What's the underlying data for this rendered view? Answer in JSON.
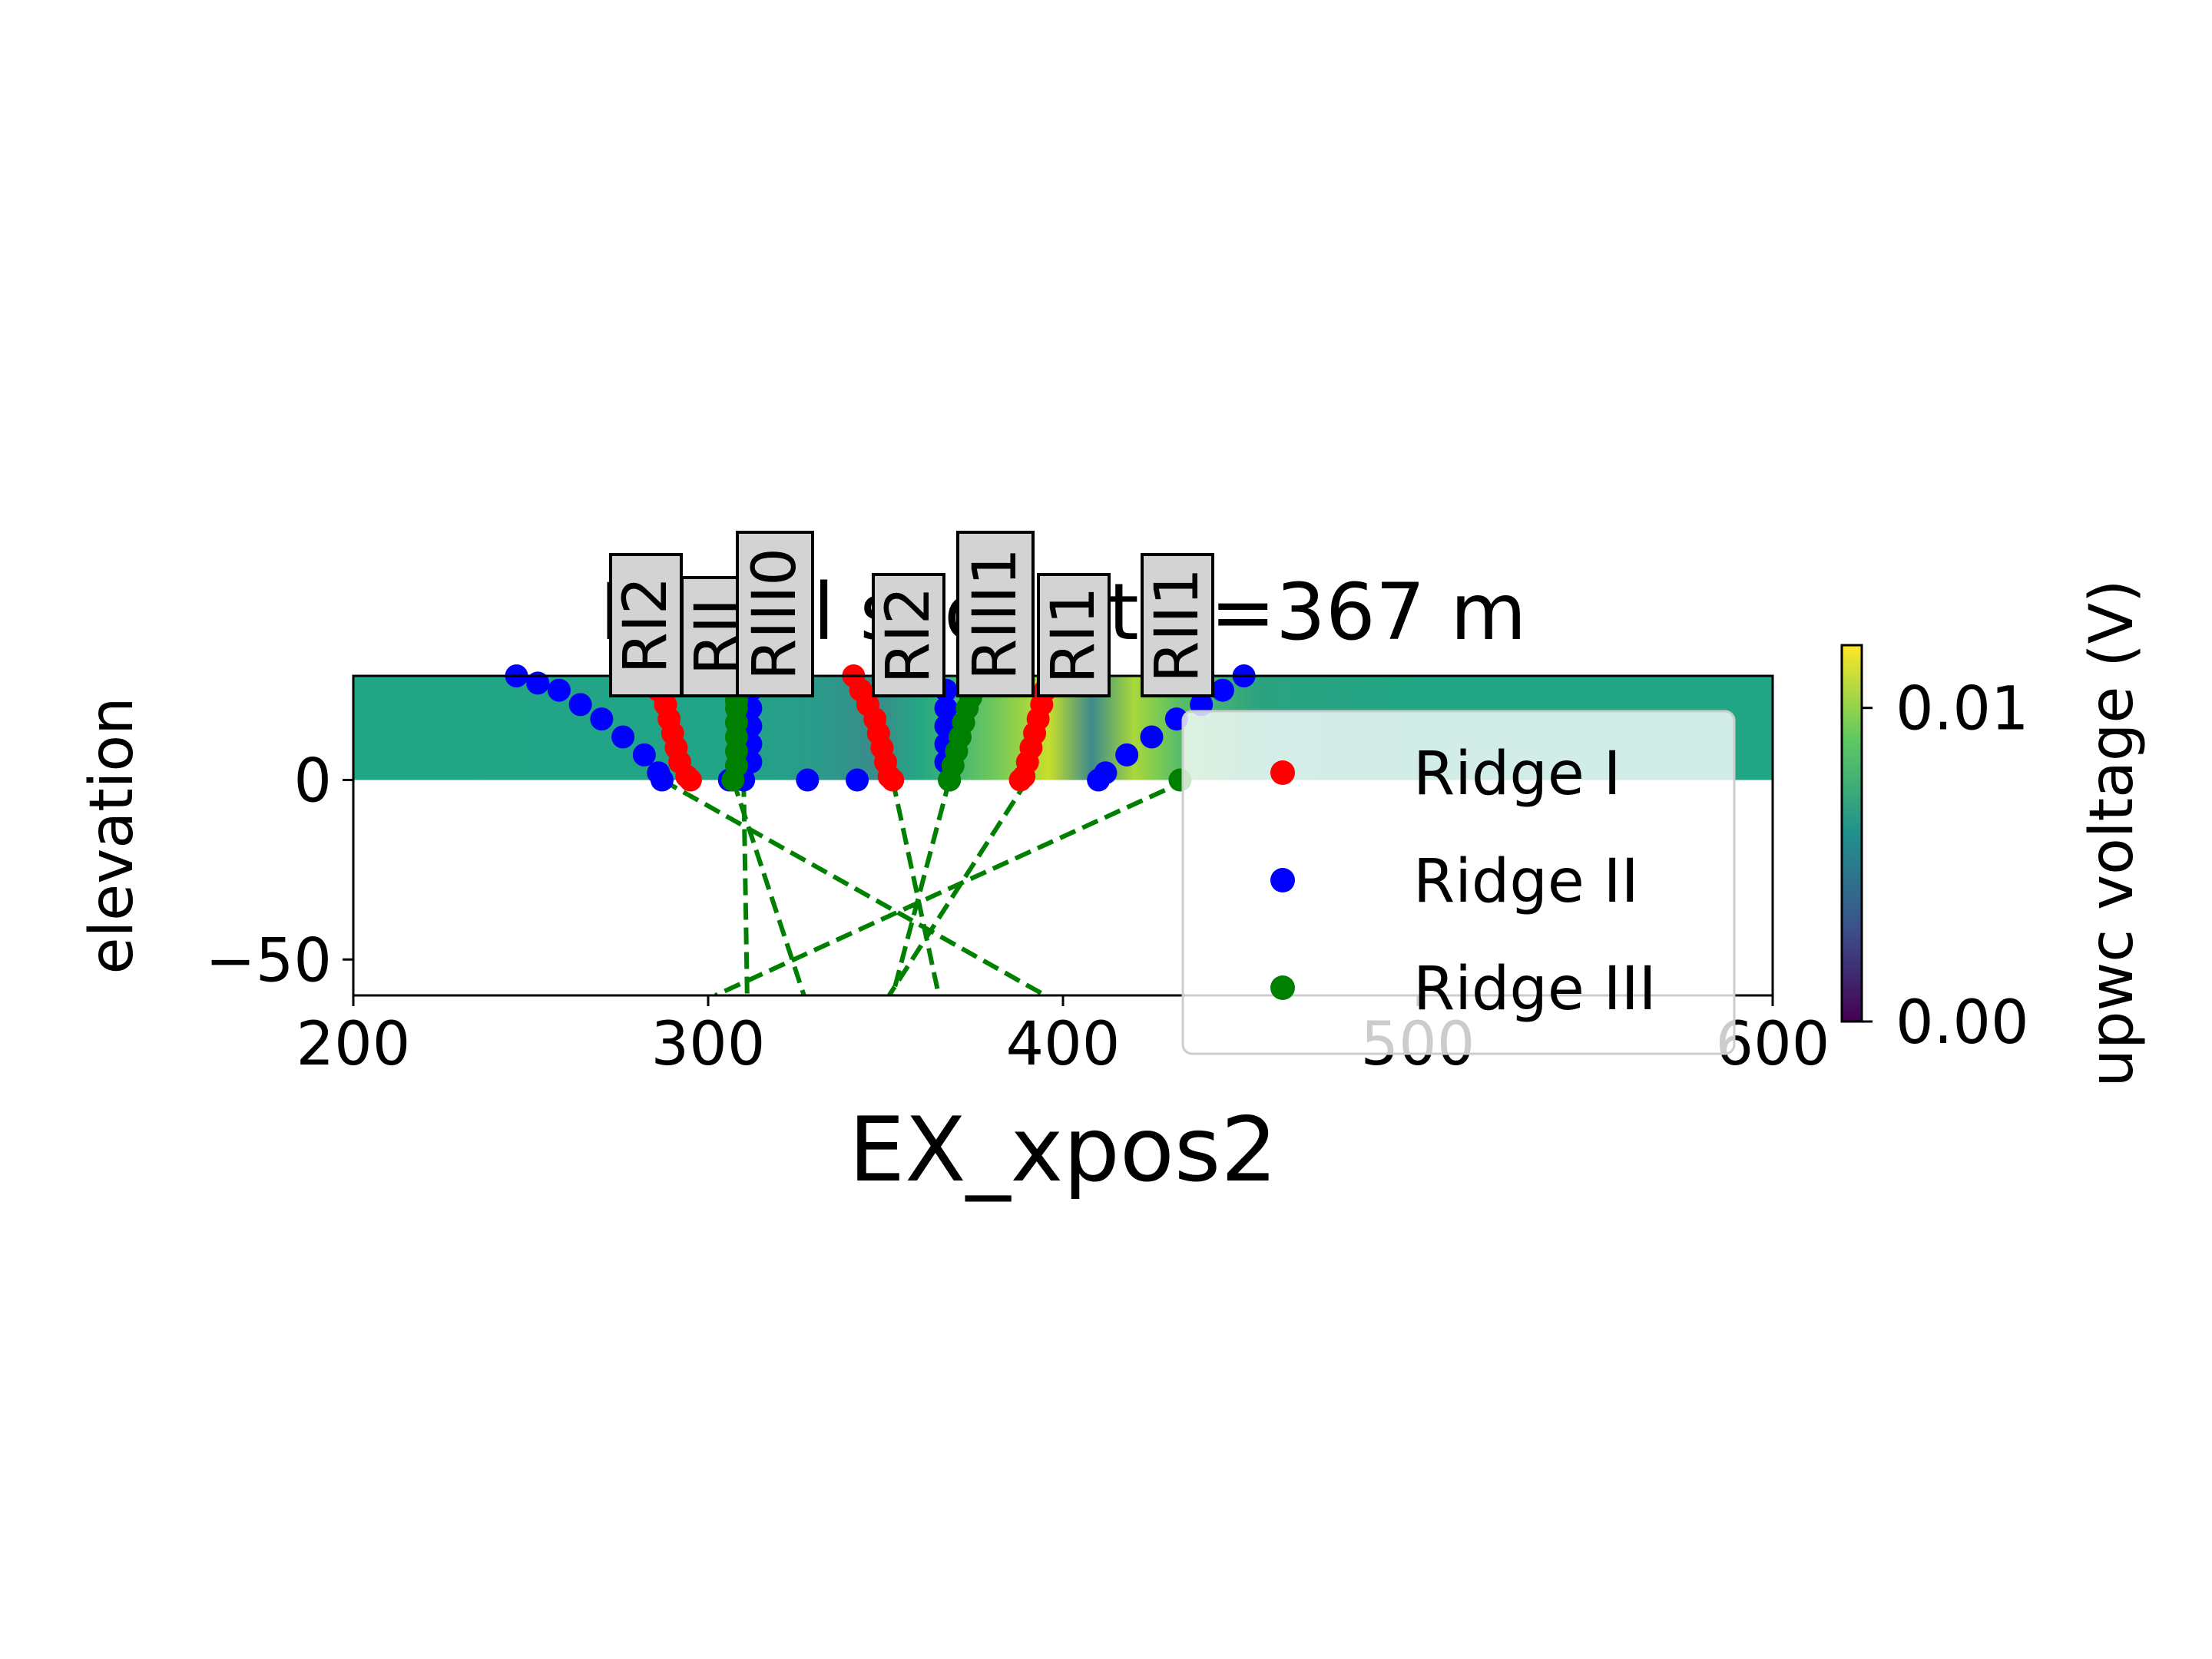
{
  "chart_data": {
    "type": "scatter",
    "title": "Model slice at x=367 m",
    "xlabel": "EX_xpos2",
    "ylabel": "elevation",
    "xlim": [
      200,
      600
    ],
    "ylim": [
      -60,
      29
    ],
    "xticks": [
      "200",
      "300",
      "400",
      "500",
      "600"
    ],
    "yticks": [
      {
        "value": 0,
        "label": "0"
      },
      {
        "value": -50,
        "label": "−50"
      }
    ],
    "grid": false,
    "legend_position": "right",
    "colorbar": {
      "label": "upwc voltage (V)",
      "range": [
        0.0,
        0.012
      ],
      "ticks": [
        {
          "value": 0.0,
          "label": "0.00"
        },
        {
          "value": 0.01,
          "label": "0.01"
        }
      ],
      "colormap": "viridis"
    },
    "series": [
      {
        "name": "Ridge I",
        "color": "#ff0000",
        "points": [
          [
            285,
            29
          ],
          [
            286,
            25
          ],
          [
            288,
            21
          ],
          [
            289,
            17
          ],
          [
            290,
            13
          ],
          [
            291,
            9
          ],
          [
            292,
            5
          ],
          [
            294,
            1
          ],
          [
            295,
            0
          ],
          [
            341,
            29
          ],
          [
            343,
            25
          ],
          [
            345,
            21
          ],
          [
            347,
            17
          ],
          [
            348,
            13
          ],
          [
            349,
            9
          ],
          [
            350,
            5
          ],
          [
            351,
            1
          ],
          [
            352,
            0
          ],
          [
            397,
            29
          ],
          [
            395,
            25
          ],
          [
            394,
            21
          ],
          [
            393,
            17
          ],
          [
            392,
            13
          ],
          [
            391,
            9
          ],
          [
            390,
            5
          ],
          [
            389,
            1
          ],
          [
            388,
            0
          ]
        ]
      },
      {
        "name": "Ridge II",
        "color": "#0000ff",
        "points": [
          [
            246,
            29
          ],
          [
            252,
            27
          ],
          [
            258,
            25
          ],
          [
            264,
            21
          ],
          [
            270,
            17
          ],
          [
            276,
            12
          ],
          [
            282,
            7
          ],
          [
            286,
            2
          ],
          [
            287,
            0
          ],
          [
            306,
            0
          ],
          [
            310,
            0
          ],
          [
            312,
            5
          ],
          [
            312,
            10
          ],
          [
            312,
            15
          ],
          [
            312,
            20
          ],
          [
            312,
            25
          ],
          [
            328,
            0
          ],
          [
            342,
            0
          ],
          [
            368,
            0
          ],
          [
            367,
            5
          ],
          [
            367,
            10
          ],
          [
            367,
            15
          ],
          [
            367,
            20
          ],
          [
            367,
            25
          ],
          [
            410,
            0
          ],
          [
            412,
            2
          ],
          [
            418,
            7
          ],
          [
            425,
            12
          ],
          [
            432,
            17
          ],
          [
            439,
            21
          ],
          [
            445,
            25
          ],
          [
            451,
            29
          ]
        ]
      },
      {
        "name": "Ridge III",
        "color": "#008000",
        "points": [
          [
            307,
            0
          ],
          [
            308,
            4
          ],
          [
            308,
            8
          ],
          [
            308,
            12
          ],
          [
            308,
            16
          ],
          [
            308,
            20
          ],
          [
            308,
            22
          ],
          [
            368,
            0
          ],
          [
            369,
            4
          ],
          [
            370,
            8
          ],
          [
            371,
            12
          ],
          [
            372,
            16
          ],
          [
            373,
            20
          ],
          [
            374,
            23
          ],
          [
            433,
            0
          ]
        ]
      }
    ],
    "survey_lines": [
      [
        [
          287,
          0
        ],
        [
          395,
          -60
        ]
      ],
      [
        [
          307,
          0
        ],
        [
          327,
          -60
        ]
      ],
      [
        [
          310,
          0
        ],
        [
          311,
          -60
        ]
      ],
      [
        [
          352,
          0
        ],
        [
          365,
          -60
        ]
      ],
      [
        [
          368,
          0
        ],
        [
          352,
          -60
        ]
      ],
      [
        [
          390,
          0
        ],
        [
          351,
          -60
        ]
      ],
      [
        [
          435,
          0
        ],
        [
          302,
          -60
        ]
      ]
    ],
    "survey_line_color": "#008000",
    "station_labels": [
      "RI2",
      "RII",
      "RIII0",
      "RI2",
      "RIII1",
      "RI1",
      "RII1"
    ]
  }
}
